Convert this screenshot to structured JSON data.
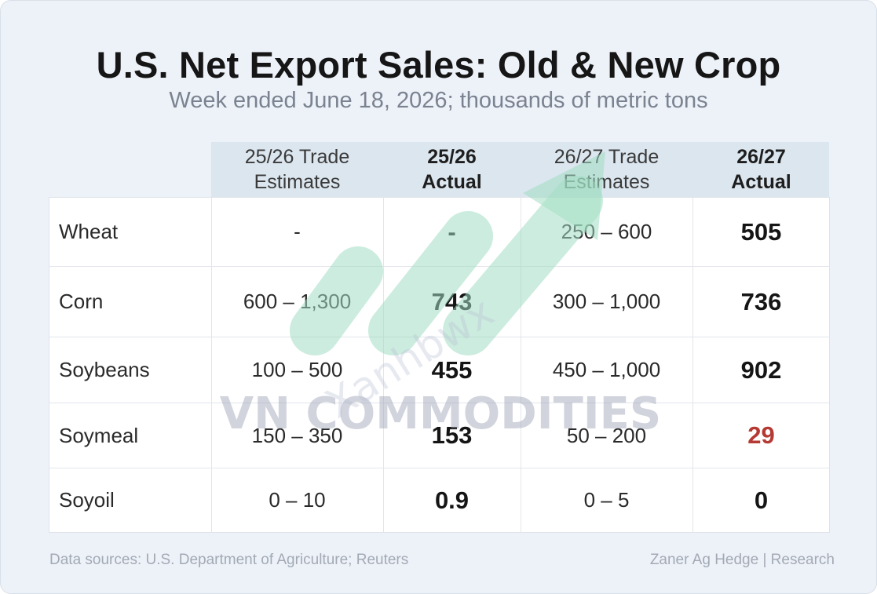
{
  "title": "U.S. Net Export Sales: Old & New Crop",
  "subtitle": "Week ended June 18, 2026; thousands of metric tons",
  "headers": [
    {
      "line1": "25/26 Trade",
      "line2": "Estimates"
    },
    {
      "line1": "25/26",
      "line2": "Actual"
    },
    {
      "line1": "26/27 Trade",
      "line2": "Estimates"
    },
    {
      "line1": "26/27",
      "line2": "Actual"
    }
  ],
  "rows": [
    {
      "commodity": "Wheat",
      "est_2526": "-",
      "act_2526": "-",
      "est_2627": "250 – 600",
      "act_2627": "505"
    },
    {
      "commodity": "Corn",
      "est_2526": "600 – 1,300",
      "act_2526": "743",
      "est_2627": "300 – 1,000",
      "act_2627": "736"
    },
    {
      "commodity": "Soybeans",
      "est_2526": "100 – 500",
      "act_2526": "455",
      "est_2627": "450 – 1,000",
      "act_2627": "902"
    },
    {
      "commodity": "Soymeal",
      "est_2526": "150 – 350",
      "act_2526": "153",
      "est_2627": "50 – 200",
      "act_2627": "29"
    },
    {
      "commodity": "Soyoil",
      "est_2526": "0 – 10",
      "act_2526": "0.9",
      "est_2627": "0 – 5",
      "act_2627": "0"
    }
  ],
  "colors": {
    "highlight_value": "#b43a33",
    "header_band": "#dce6ef",
    "background": "#edf2f9"
  },
  "watermark": {
    "text": "VN COMMODITIES",
    "arc_text": "Xanhbwx",
    "icon": "rising-arrow-logo"
  },
  "footer": {
    "left": "Data sources: U.S. Department of Agriculture; Reuters",
    "right": "Zaner Ag Hedge | Research"
  }
}
